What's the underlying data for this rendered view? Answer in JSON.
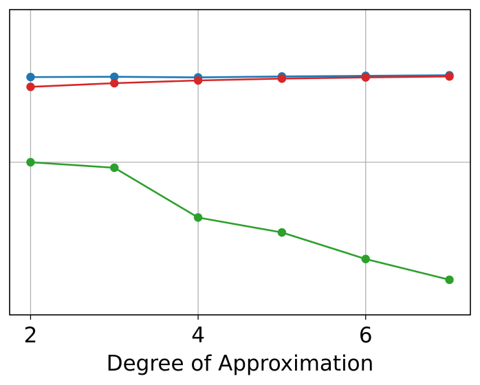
{
  "chart_data": {
    "type": "line",
    "xlabel": "Degree of Approximation",
    "ylabel": "",
    "x": [
      2,
      3,
      4,
      5,
      6,
      7
    ],
    "xlim": [
      1.75,
      7.25
    ],
    "xticks": [
      2,
      4,
      6
    ],
    "ylim": [
      0,
      1
    ],
    "y_grid_values": [
      0.5
    ],
    "show_y_tick_labels": false,
    "grid": true,
    "series": [
      {
        "color": "#1f77b4",
        "values": [
          0.779,
          0.78,
          0.778,
          0.781,
          0.783,
          0.785
        ]
      },
      {
        "color": "#d62728",
        "values": [
          0.747,
          0.759,
          0.768,
          0.774,
          0.778,
          0.781
        ]
      },
      {
        "color": "#2ca02c",
        "values": [
          0.5,
          0.482,
          0.319,
          0.27,
          0.183,
          0.115
        ]
      }
    ]
  }
}
